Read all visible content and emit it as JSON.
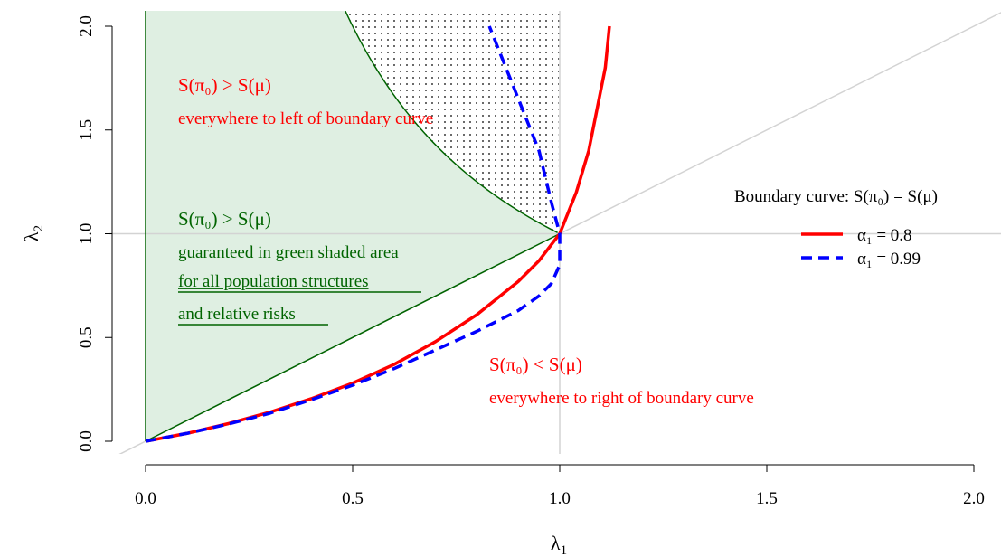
{
  "chart_data": {
    "type": "line",
    "xlabel_main": "λ",
    "xlabel_sub": "1",
    "ylabel_main": "λ",
    "ylabel_sub": "2",
    "xlim": [
      0,
      2
    ],
    "ylim": [
      0,
      2
    ],
    "xticks": [
      "0.0",
      "0.5",
      "1.0",
      "1.5",
      "2.0"
    ],
    "yticks": [
      "0.0",
      "0.5",
      "1.0",
      "1.5",
      "2.0"
    ],
    "xtick_values": [
      0,
      0.5,
      1,
      1.5,
      2
    ],
    "ytick_values": [
      0,
      0.5,
      1,
      1.5,
      2
    ],
    "reference_lines": {
      "identity_diagonal": true,
      "vertical_x": 1,
      "horizontal_y": 1,
      "color": "#d3d3d3"
    },
    "green_region": {
      "description_color": "#006400",
      "fill": "#d9ecdd",
      "boundary_lower": [
        [
          0,
          0
        ],
        [
          1,
          1
        ]
      ],
      "boundary_upper_curve_y_equals_1_over_x_from_x": 0.5
    },
    "dotted_region": {
      "between": "upper green boundary and x = 1",
      "y_from": 1,
      "y_to": 2
    },
    "series": [
      {
        "name": "α1 = 0.8",
        "color": "#ff0000",
        "style": "solid",
        "points": [
          [
            0,
            0
          ],
          [
            0.1,
            0.038
          ],
          [
            0.2,
            0.085
          ],
          [
            0.3,
            0.14
          ],
          [
            0.4,
            0.205
          ],
          [
            0.5,
            0.28
          ],
          [
            0.6,
            0.37
          ],
          [
            0.7,
            0.48
          ],
          [
            0.8,
            0.61
          ],
          [
            0.9,
            0.77
          ],
          [
            0.95,
            0.87
          ],
          [
            1.0,
            1.0
          ],
          [
            1.04,
            1.2
          ],
          [
            1.07,
            1.4
          ],
          [
            1.09,
            1.6
          ],
          [
            1.11,
            1.8
          ],
          [
            1.12,
            2.0
          ]
        ]
      },
      {
        "name": "α1 = 0.99",
        "color": "#0000ff",
        "style": "dashed",
        "points": [
          [
            0,
            0
          ],
          [
            0.1,
            0.038
          ],
          [
            0.2,
            0.083
          ],
          [
            0.3,
            0.135
          ],
          [
            0.4,
            0.2
          ],
          [
            0.5,
            0.27
          ],
          [
            0.6,
            0.35
          ],
          [
            0.7,
            0.44
          ],
          [
            0.8,
            0.53
          ],
          [
            0.9,
            0.63
          ],
          [
            0.95,
            0.7
          ],
          [
            0.98,
            0.76
          ],
          [
            1.0,
            0.85
          ],
          [
            1.0,
            1.0
          ],
          [
            0.98,
            1.15
          ],
          [
            0.95,
            1.4
          ],
          [
            0.92,
            1.55
          ],
          [
            0.89,
            1.7
          ],
          [
            0.86,
            1.85
          ],
          [
            0.83,
            2.0
          ]
        ]
      }
    ],
    "annotations": {
      "red_top_title": "S(π₀) > S(μ)",
      "red_top_line": "everywhere to left of boundary curve",
      "green_title": "S(π₀) > S(μ)",
      "green_line1": "guaranteed in green shaded area",
      "green_line2": "for all population structures",
      "green_line3": "and relative risks",
      "red_bottom_title": "S(π₀) < S(μ)",
      "red_bottom_line": "everywhere to right of boundary curve"
    },
    "legend": {
      "title": "Boundary curve:  S(π₀) = S(μ)",
      "position": "right",
      "entries": [
        "α₁ = 0.8",
        "α₁ = 0.99"
      ]
    }
  }
}
